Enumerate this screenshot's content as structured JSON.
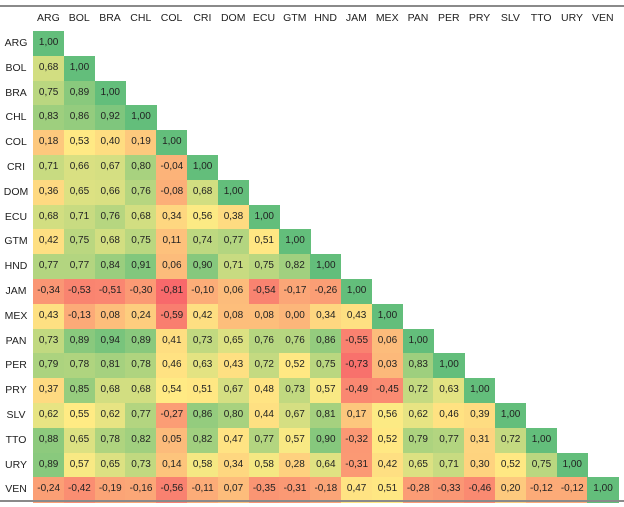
{
  "chart_data": {
    "type": "heatmap",
    "labels": [
      "ARG",
      "BOL",
      "BRA",
      "CHL",
      "COL",
      "CRI",
      "DOM",
      "ECU",
      "GTM",
      "HND",
      "JAM",
      "MEX",
      "PAN",
      "PER",
      "PRY",
      "SLV",
      "TTO",
      "URY",
      "VEN"
    ],
    "color_scale": {
      "low": "#f8696b",
      "mid": "#ffeb84",
      "high": "#63be7b"
    },
    "values": [
      [
        1.0
      ],
      [
        0.68,
        1.0
      ],
      [
        0.75,
        0.89,
        1.0
      ],
      [
        0.83,
        0.86,
        0.92,
        1.0
      ],
      [
        0.18,
        0.53,
        0.4,
        0.19,
        1.0
      ],
      [
        0.71,
        0.66,
        0.67,
        0.8,
        -0.04,
        1.0
      ],
      [
        0.36,
        0.65,
        0.66,
        0.76,
        -0.08,
        0.68,
        1.0
      ],
      [
        0.68,
        0.71,
        0.76,
        0.68,
        0.34,
        0.56,
        0.38,
        1.0
      ],
      [
        0.42,
        0.75,
        0.68,
        0.75,
        0.11,
        0.74,
        0.77,
        0.51,
        1.0
      ],
      [
        0.77,
        0.77,
        0.84,
        0.91,
        0.06,
        0.9,
        0.71,
        0.75,
        0.82,
        1.0
      ],
      [
        -0.34,
        -0.53,
        -0.51,
        -0.3,
        -0.81,
        -0.1,
        0.06,
        -0.54,
        -0.17,
        -0.26,
        1.0
      ],
      [
        0.43,
        -0.13,
        0.08,
        0.24,
        -0.59,
        0.42,
        0.08,
        0.08,
        0.0,
        0.34,
        0.43,
        1.0
      ],
      [
        0.73,
        0.89,
        0.94,
        0.89,
        0.41,
        0.73,
        0.65,
        0.76,
        0.76,
        0.86,
        -0.55,
        0.06,
        1.0
      ],
      [
        0.79,
        0.78,
        0.81,
        0.78,
        0.46,
        0.63,
        0.43,
        0.72,
        0.52,
        0.75,
        -0.73,
        0.03,
        0.83,
        1.0
      ],
      [
        0.37,
        0.85,
        0.68,
        0.68,
        0.54,
        0.51,
        0.67,
        0.48,
        0.73,
        0.57,
        -0.49,
        -0.45,
        0.72,
        0.63,
        1.0
      ],
      [
        0.62,
        0.55,
        0.62,
        0.77,
        -0.27,
        0.86,
        0.8,
        0.44,
        0.67,
        0.81,
        0.17,
        0.56,
        0.62,
        0.46,
        0.39,
        1.0
      ],
      [
        0.88,
        0.65,
        0.78,
        0.82,
        0.05,
        0.82,
        0.47,
        0.77,
        0.57,
        0.9,
        -0.32,
        0.52,
        0.79,
        0.77,
        0.31,
        0.72,
        1.0
      ],
      [
        0.89,
        0.57,
        0.65,
        0.73,
        0.14,
        0.58,
        0.34,
        0.58,
        0.28,
        0.64,
        -0.31,
        0.42,
        0.65,
        0.71,
        0.3,
        0.52,
        0.75,
        1.0
      ],
      [
        -0.24,
        -0.42,
        -0.19,
        -0.16,
        -0.56,
        -0.11,
        0.07,
        -0.35,
        -0.31,
        -0.18,
        0.47,
        0.51,
        -0.28,
        -0.33,
        -0.46,
        0.2,
        -0.12,
        -0.12,
        1.0
      ]
    ]
  }
}
